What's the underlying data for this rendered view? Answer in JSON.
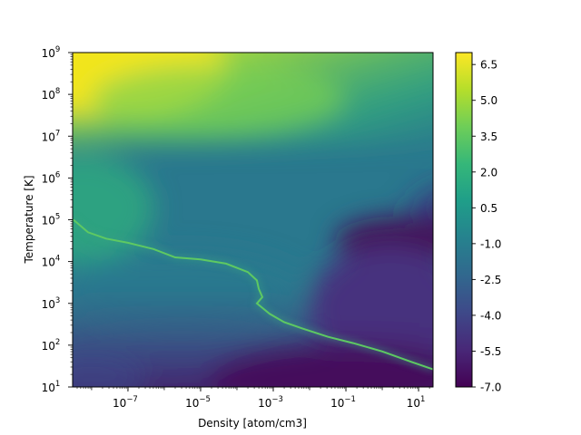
{
  "chart_data": {
    "type": "heatmap",
    "xlabel": "Density [atom/cm3]",
    "ylabel": "Temperature [K]",
    "x_scale": "log",
    "y_scale": "log",
    "xlim": [
      3e-09,
      25
    ],
    "ylim": [
      10,
      1000000000
    ],
    "x_ticks": [
      {
        "value": 1e-07,
        "base": "10",
        "exp": "−7"
      },
      {
        "value": 1e-05,
        "base": "10",
        "exp": "−5"
      },
      {
        "value": 0.001,
        "base": "10",
        "exp": "−3"
      },
      {
        "value": 0.1,
        "base": "10",
        "exp": "−1"
      },
      {
        "value": 10,
        "base": "10",
        "exp": "1"
      }
    ],
    "y_ticks": [
      {
        "value": 10,
        "base": "10",
        "exp": "1"
      },
      {
        "value": 100,
        "base": "10",
        "exp": "2"
      },
      {
        "value": 1000,
        "base": "10",
        "exp": "3"
      },
      {
        "value": 10000,
        "base": "10",
        "exp": "4"
      },
      {
        "value": 100000,
        "base": "10",
        "exp": "5"
      },
      {
        "value": 1000000,
        "base": "10",
        "exp": "6"
      },
      {
        "value": 10000000,
        "base": "10",
        "exp": "7"
      },
      {
        "value": 100000000,
        "base": "10",
        "exp": "8"
      },
      {
        "value": 1000000000,
        "base": "10",
        "exp": "9"
      }
    ],
    "colorbar": {
      "colormap": "viridis",
      "range": [
        -7.0,
        7.0
      ],
      "ticks": [
        6.5,
        5.0,
        3.5,
        2.0,
        0.5,
        -1.0,
        -2.5,
        -4.0,
        -5.5,
        -7.0
      ],
      "tick_labels": [
        "6.5",
        "5.0",
        "3.5",
        "2.0",
        "0.5",
        "-1.0",
        "-2.5",
        "-4.0",
        "-5.5",
        "-7.0"
      ]
    },
    "ridge_curve": {
      "log_x": [
        -8.5,
        -8.1,
        -7.6,
        -7.0,
        -6.3,
        -5.7,
        -5.0,
        -4.3,
        -3.7,
        -3.45,
        -3.4,
        -3.3,
        -3.45,
        -3.1,
        -2.7,
        -2.2,
        -1.5,
        -0.8,
        0.0,
        0.8,
        1.4
      ],
      "log_y": [
        5.0,
        4.7,
        4.55,
        4.45,
        4.3,
        4.1,
        4.05,
        3.95,
        3.75,
        3.55,
        3.35,
        3.15,
        3.0,
        2.75,
        2.55,
        2.4,
        2.2,
        2.05,
        1.85,
        1.6,
        1.42
      ]
    }
  }
}
